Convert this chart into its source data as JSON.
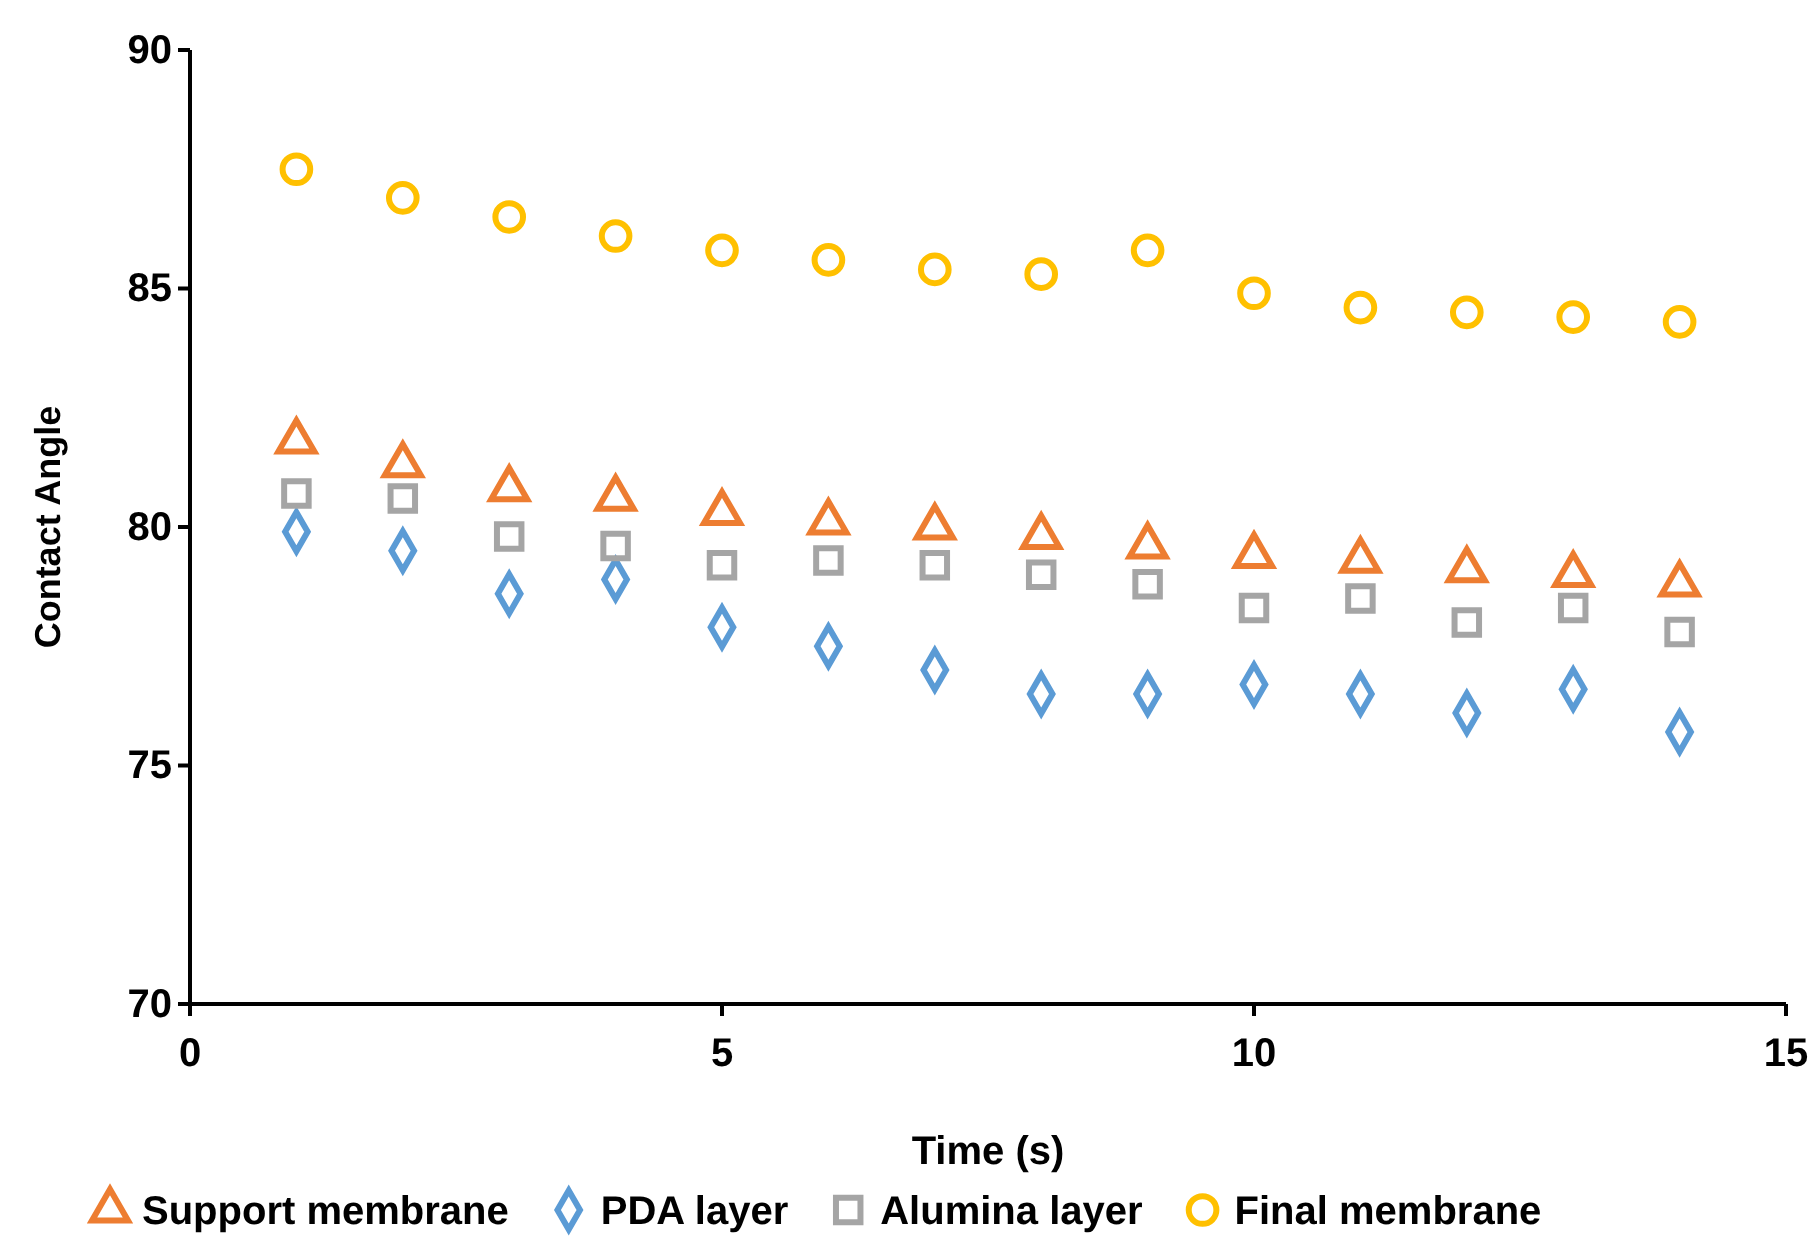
{
  "chart_data": {
    "type": "scatter",
    "xlabel": "Time (s)",
    "ylabel": "Contact Angle",
    "x": [
      1,
      2,
      3,
      4,
      5,
      6,
      7,
      8,
      9,
      10,
      11,
      12,
      13,
      14
    ],
    "xlim": [
      0,
      15
    ],
    "xticks": [
      0,
      5,
      10,
      15
    ],
    "ylim": [
      70,
      90
    ],
    "yticks": [
      70,
      75,
      80,
      85,
      90
    ],
    "grid": false,
    "legend": "bottom",
    "series": [
      {
        "name": "Support membrane",
        "color": "#ed7d31",
        "marker": "triangle",
        "values": [
          81.8,
          81.3,
          80.8,
          80.6,
          80.3,
          80.1,
          80.0,
          79.8,
          79.6,
          79.4,
          79.3,
          79.1,
          79.0,
          78.8
        ]
      },
      {
        "name": "PDA layer",
        "color": "#5b9bd5",
        "marker": "diamond",
        "values": [
          79.9,
          79.5,
          78.6,
          78.9,
          77.9,
          77.5,
          77.0,
          76.5,
          76.5,
          76.7,
          76.5,
          76.1,
          76.6,
          75.7
        ]
      },
      {
        "name": "Alumina layer",
        "color": "#a5a5a5",
        "marker": "square",
        "values": [
          80.7,
          80.6,
          79.8,
          79.6,
          79.2,
          79.3,
          79.2,
          79.0,
          78.8,
          78.3,
          78.5,
          78.0,
          78.3,
          77.8
        ]
      },
      {
        "name": "Final membrane",
        "color": "#ffc000",
        "marker": "circle",
        "values": [
          87.5,
          86.9,
          86.5,
          86.1,
          85.8,
          85.6,
          85.4,
          85.3,
          85.8,
          84.9,
          84.6,
          84.5,
          84.4,
          84.3
        ]
      }
    ]
  }
}
